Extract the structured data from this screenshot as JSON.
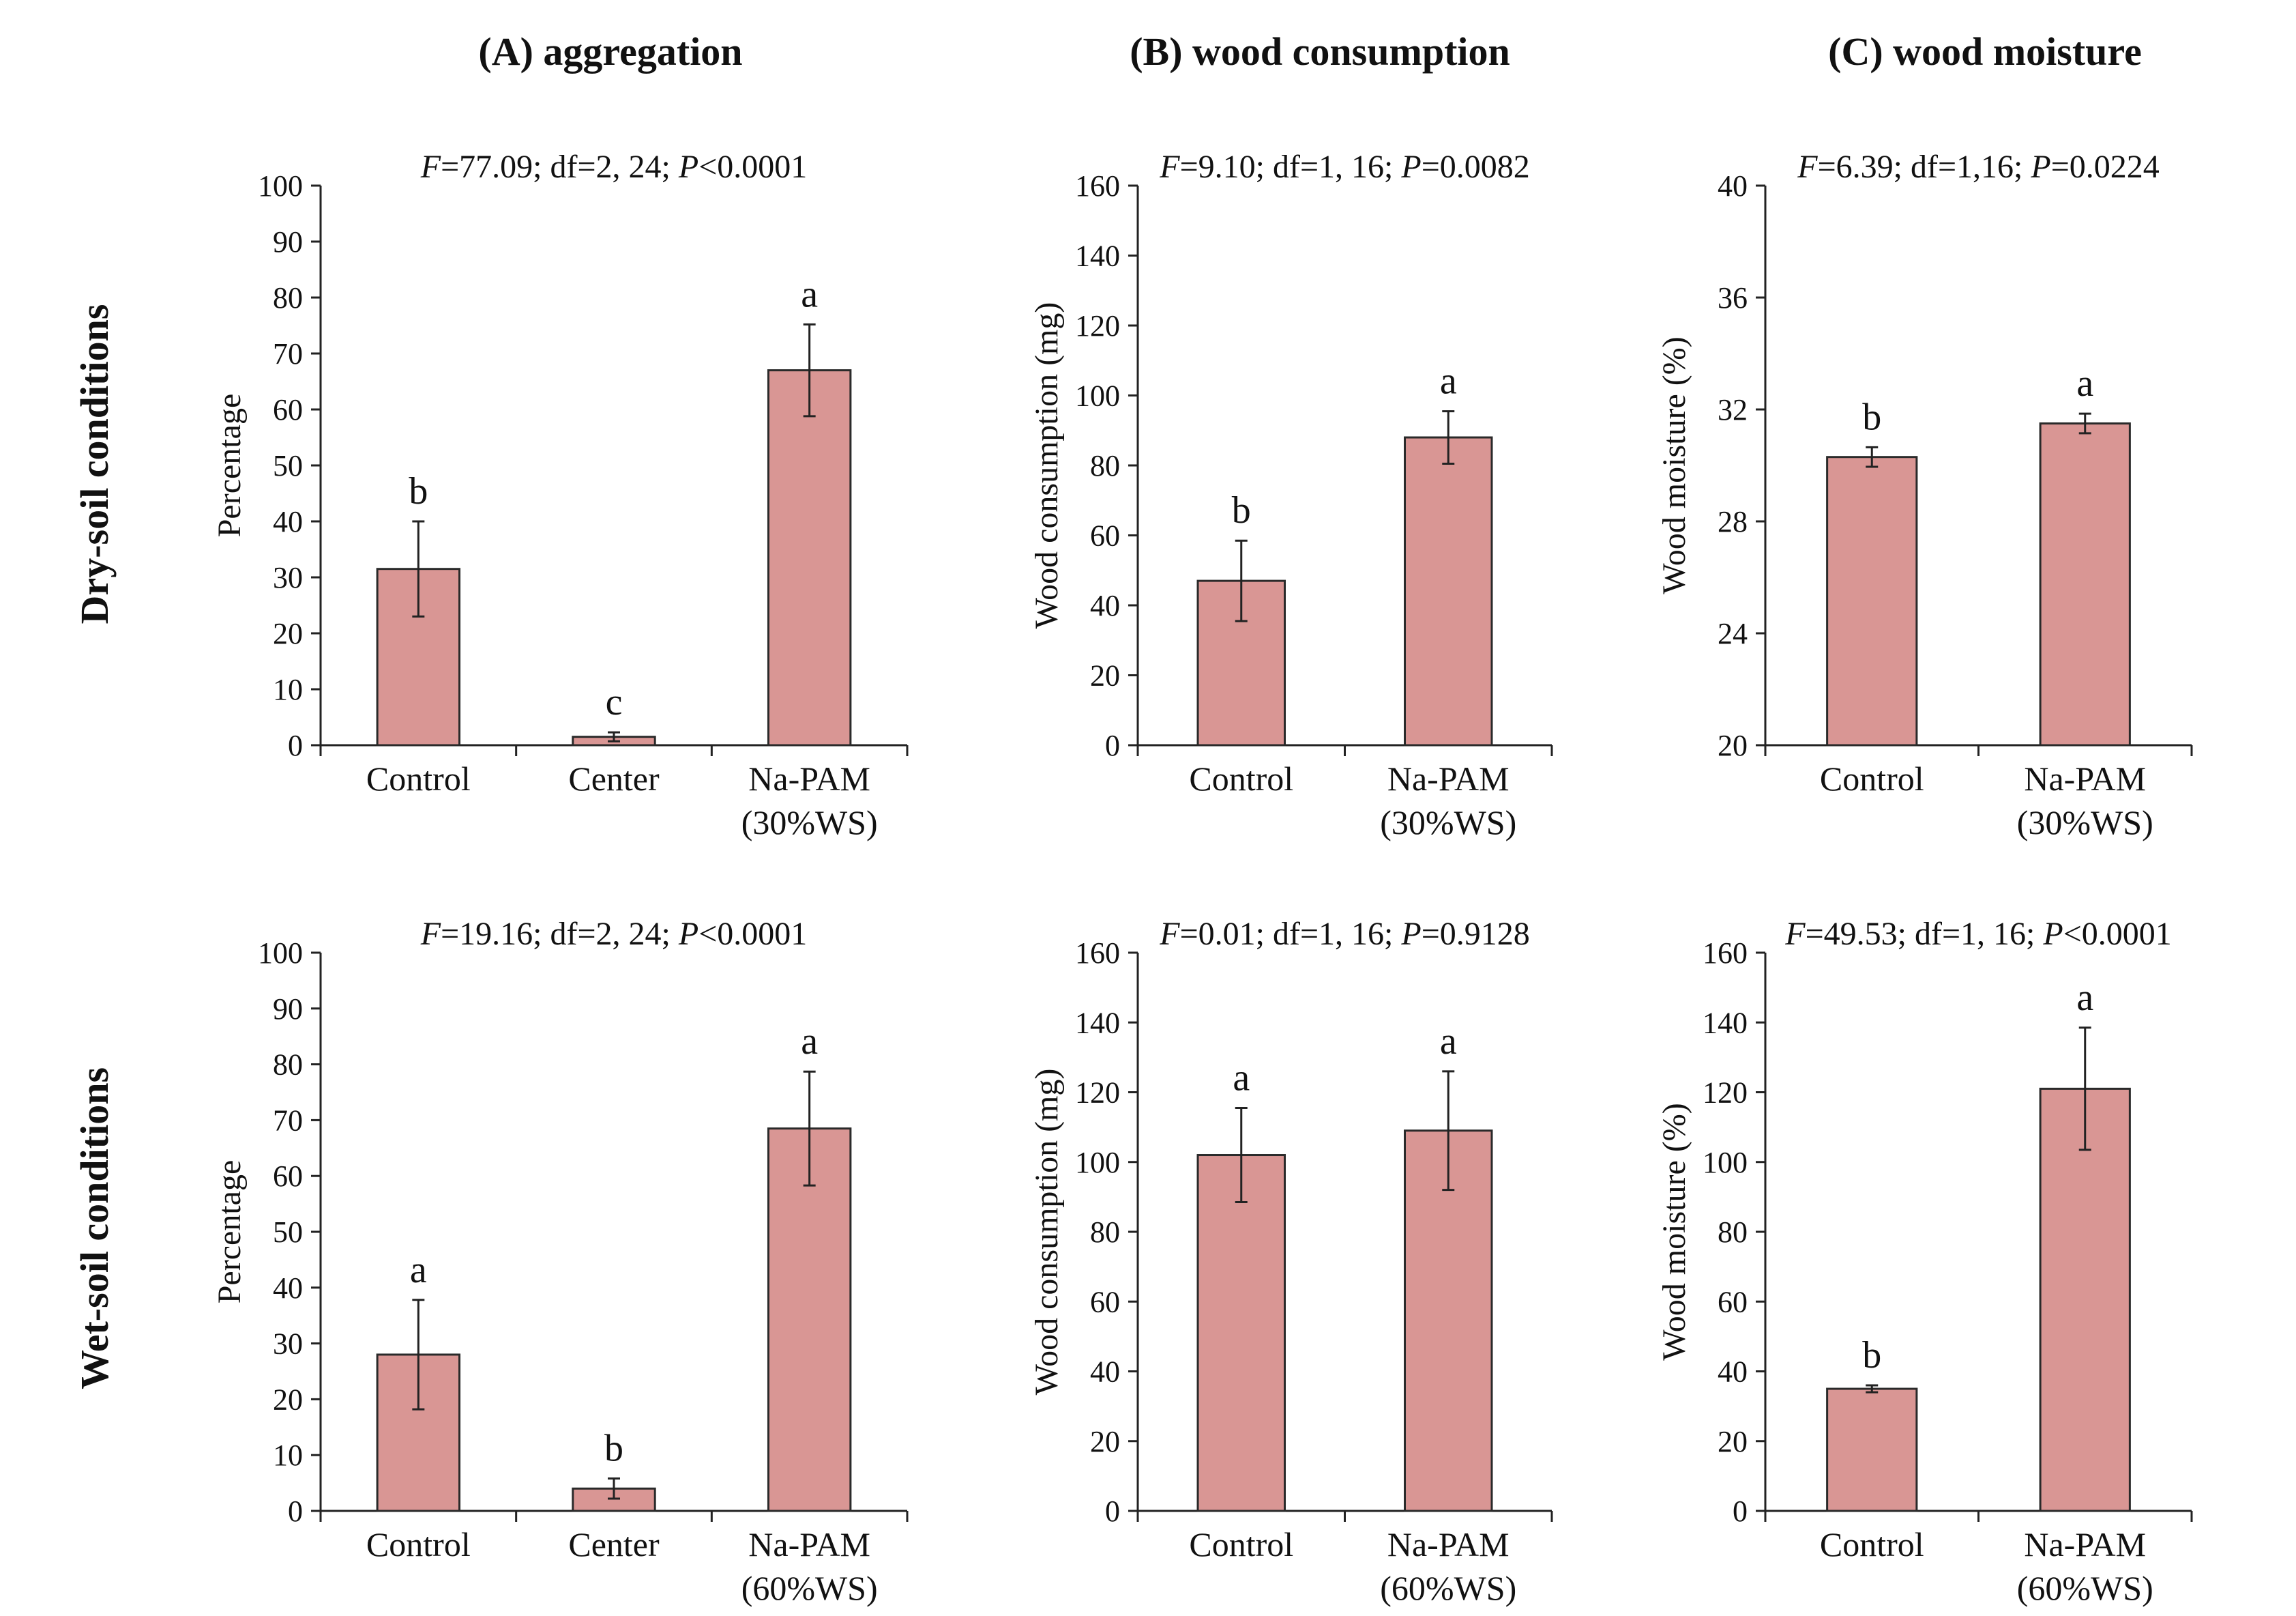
{
  "columns": [
    {
      "title": "(A) aggregation"
    },
    {
      "title": "(B) wood consumption"
    },
    {
      "title": "(C) wood moisture"
    }
  ],
  "rows": [
    {
      "title": "Dry-soil conditions"
    },
    {
      "title": "Wet-soil conditions"
    }
  ],
  "colors": {
    "bar": "#d99694",
    "axis": "#222222"
  },
  "chart_data": [
    {
      "id": "A-dry",
      "type": "bar",
      "row": 0,
      "col": 0,
      "stats": {
        "f": "F",
        "f_val": "=77.09; df=2, 24; ",
        "p": "P",
        "p_val": "<0.0001"
      },
      "ylabel": "Percentage",
      "ylim": [
        0,
        100
      ],
      "yticks": [
        0,
        10,
        20,
        30,
        40,
        50,
        60,
        70,
        80,
        90,
        100
      ],
      "categories": [
        [
          "Control"
        ],
        [
          "Center"
        ],
        [
          "Na-PAM",
          "(30%WS)"
        ]
      ],
      "values": [
        31.5,
        1.5,
        67
      ],
      "errors": [
        8.5,
        0.8,
        8.2
      ],
      "letters": [
        "b",
        "c",
        "a"
      ]
    },
    {
      "id": "B-dry",
      "type": "bar",
      "row": 0,
      "col": 1,
      "stats": {
        "f": "F",
        "f_val": "=9.10; df=1, 16; ",
        "p": "P",
        "p_val": "=0.0082"
      },
      "ylabel": "Wood consumption (mg)",
      "ylim": [
        0,
        160
      ],
      "yticks": [
        0,
        20,
        40,
        60,
        80,
        100,
        120,
        140,
        160
      ],
      "categories": [
        [
          "Control"
        ],
        [
          "Na-PAM",
          "(30%WS)"
        ]
      ],
      "values": [
        47,
        88
      ],
      "errors": [
        11.5,
        7.5
      ],
      "letters": [
        "b",
        "a"
      ]
    },
    {
      "id": "C-dry",
      "type": "bar",
      "row": 0,
      "col": 2,
      "stats": {
        "f": "F",
        "f_val": "=6.39; df=1,16; ",
        "p": "P",
        "p_val": "=0.0224"
      },
      "ylabel": "Wood moisture (%)",
      "ylim": [
        20,
        40
      ],
      "yticks": [
        20,
        24,
        28,
        32,
        36,
        40
      ],
      "categories": [
        [
          "Control"
        ],
        [
          "Na-PAM",
          "(30%WS)"
        ]
      ],
      "values": [
        30.3,
        31.5
      ],
      "errors": [
        0.35,
        0.35
      ],
      "letters": [
        "b",
        "a"
      ]
    },
    {
      "id": "A-wet",
      "type": "bar",
      "row": 1,
      "col": 0,
      "stats": {
        "f": "F",
        "f_val": "=19.16; df=2, 24; ",
        "p": "P",
        "p_val": "<0.0001"
      },
      "ylabel": "Percentage",
      "ylim": [
        0,
        100
      ],
      "yticks": [
        0,
        10,
        20,
        30,
        40,
        50,
        60,
        70,
        80,
        90,
        100
      ],
      "categories": [
        [
          "Control"
        ],
        [
          "Center"
        ],
        [
          "Na-PAM",
          "(60%WS)"
        ]
      ],
      "values": [
        28,
        4,
        68.5
      ],
      "errors": [
        9.8,
        1.8,
        10.2
      ],
      "letters": [
        "a",
        "b",
        "a"
      ]
    },
    {
      "id": "B-wet",
      "type": "bar",
      "row": 1,
      "col": 1,
      "stats": {
        "f": "F",
        "f_val": "=0.01; df=1, 16; ",
        "p": "P",
        "p_val": "=0.9128"
      },
      "ylabel": "Wood consumption (mg)",
      "ylim": [
        0,
        160
      ],
      "yticks": [
        0,
        20,
        40,
        60,
        80,
        100,
        120,
        140,
        160
      ],
      "categories": [
        [
          "Control"
        ],
        [
          "Na-PAM",
          "(60%WS)"
        ]
      ],
      "values": [
        102,
        109
      ],
      "errors": [
        13.5,
        17
      ],
      "letters": [
        "a",
        "a"
      ]
    },
    {
      "id": "C-wet",
      "type": "bar",
      "row": 1,
      "col": 2,
      "stats": {
        "f": "F",
        "f_val": "=49.53; df=1, 16; ",
        "p": "P",
        "p_val": "<0.0001"
      },
      "ylabel": "Wood moisture (%)",
      "ylim": [
        0,
        160
      ],
      "yticks": [
        0,
        20,
        40,
        60,
        80,
        100,
        120,
        140,
        160
      ],
      "categories": [
        [
          "Control"
        ],
        [
          "Na-PAM",
          "(60%WS)"
        ]
      ],
      "values": [
        35,
        121
      ],
      "errors": [
        1,
        17.5
      ],
      "letters": [
        "b",
        "a"
      ]
    }
  ]
}
